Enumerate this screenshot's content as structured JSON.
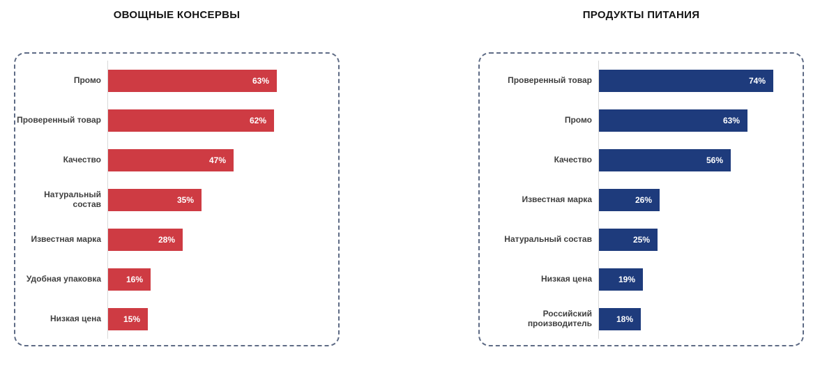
{
  "chart_data": [
    {
      "type": "bar",
      "orientation": "horizontal",
      "title": "ОВОЩНЫЕ КОНСЕРВЫ",
      "unit": "%",
      "bar_color": "#ce3b43",
      "categories": [
        "Промо",
        "Проверенный товар",
        "Качество",
        "Натуральный состав",
        "Известная марка",
        "Удобная упаковка",
        "Низкая цена"
      ],
      "values": [
        63,
        62,
        47,
        35,
        28,
        16,
        15
      ],
      "value_labels": [
        "63%",
        "62%",
        "47%",
        "35%",
        "28%",
        "16%",
        "15%"
      ],
      "xlim": [
        0,
        100
      ],
      "grid": false,
      "legend": false,
      "frame_style": "dashed-rounded"
    },
    {
      "type": "bar",
      "orientation": "horizontal",
      "title": "ПРОДУКТЫ ПИТАНИЯ",
      "unit": "%",
      "bar_color": "#1e3b7c",
      "categories": [
        "Проверенный товар",
        "Промо",
        "Качество",
        "Известная марка",
        "Натуральный состав",
        "Низкая цена",
        "Российский производитель"
      ],
      "values": [
        74,
        63,
        56,
        26,
        25,
        19,
        18
      ],
      "value_labels": [
        "74%",
        "63%",
        "56%",
        "26%",
        "25%",
        "19%",
        "18%"
      ],
      "xlim": [
        0,
        100
      ],
      "grid": false,
      "legend": false,
      "frame_style": "dashed-rounded"
    }
  ],
  "colors": {
    "left_bar": "#ce3b43",
    "right_bar": "#1e3b7c",
    "dashed_border": "#5e6b85",
    "axis_line": "#d9d9d9",
    "category_label": "#3f3f3f",
    "title_text": "#141414",
    "value_label": "#ffffff",
    "background": "#ffffff"
  }
}
